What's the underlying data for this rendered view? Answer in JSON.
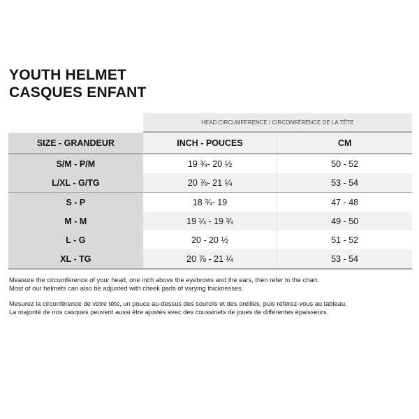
{
  "title": {
    "line1": "YOUTH HELMET",
    "line2": "CASQUES ENFANT"
  },
  "table": {
    "group_header": "HEAD CIRCUMFERENCE / CIRCONFÉRENCE DE LA TÊTE",
    "columns": [
      "SIZE - GRANDEUR",
      "INCH - POUCES",
      "CM"
    ],
    "rows": [
      [
        "S/M - P/M",
        "19 ¾- 20 ½",
        "50 - 52"
      ],
      [
        "L/XL - G/TG",
        "20 ⅞- 21 ¼",
        "53 - 54"
      ],
      [
        "S - P",
        "18 ¾- 19",
        "47 - 48"
      ],
      [
        "M - M",
        "19 ¼ - 19 ¾",
        "49 - 50"
      ],
      [
        "L - G",
        "20 - 20 ½",
        "51 - 52"
      ],
      [
        "XL - TG",
        "20 ⅞ - 21 ¼",
        "53 - 54"
      ]
    ]
  },
  "notes": {
    "en1": "Measure the circumference of your head, one inch above the eyebrows and the ears, then refer to the chart.",
    "en2": "Most of our helmets can also be adjusted with cheek pads of varying thicknesses.",
    "fr1": "Mesurez la circonférence de votre tête, un pouce au-dessus des sourcils et des oreilles, puis référez-vous au tableau.",
    "fr2": "La majorité de nos casques peuvent aussi être ajustés avec des coussinets de joues de différentes épaisseurs."
  }
}
